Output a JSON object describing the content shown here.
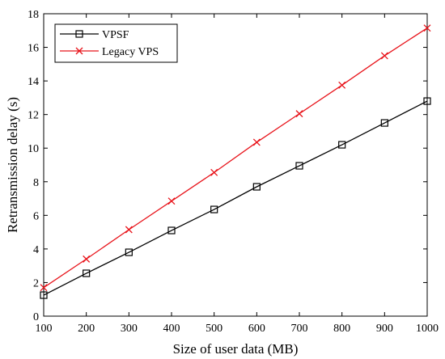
{
  "chart_data": {
    "type": "line",
    "title": "",
    "xlabel": "Size of user data (MB)",
    "ylabel": "Retransmission delay (s)",
    "xlim": [
      100,
      1000
    ],
    "ylim": [
      0,
      18
    ],
    "xticks": [
      100,
      200,
      300,
      400,
      500,
      600,
      700,
      800,
      900,
      1000
    ],
    "yticks": [
      0,
      2,
      4,
      6,
      8,
      10,
      12,
      14,
      16,
      18
    ],
    "grid": false,
    "legend_position": "top-left",
    "x": [
      100,
      200,
      300,
      400,
      500,
      600,
      700,
      800,
      900,
      1000
    ],
    "series": [
      {
        "name": "VPSF",
        "color": "#000000",
        "marker": "square",
        "values": [
          1.25,
          2.55,
          3.8,
          5.1,
          6.35,
          7.7,
          8.95,
          10.2,
          11.5,
          12.8
        ]
      },
      {
        "name": "Legacy VPS",
        "color": "#e8141b",
        "marker": "x",
        "values": [
          1.7,
          3.4,
          5.15,
          6.85,
          8.55,
          10.35,
          12.05,
          13.75,
          15.5,
          17.15
        ]
      }
    ]
  }
}
